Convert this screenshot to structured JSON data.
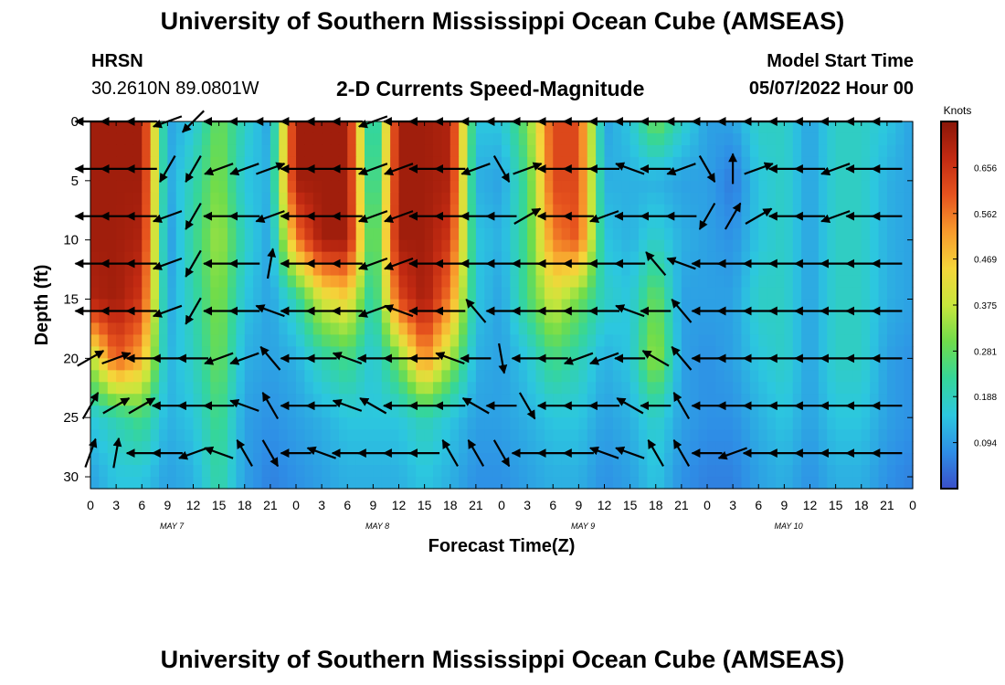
{
  "header": {
    "title": "University of Southern Mississippi Ocean Cube (AMSEAS)",
    "station": "HRSN",
    "coords": "30.2610N  89.0801W",
    "product": "2-D Currents Speed-Magnitude",
    "model_start_label": "Model Start Time",
    "model_start_value": "05/07/2022 Hour 00"
  },
  "footer": {
    "title": "University of Southern Mississippi Ocean Cube (AMSEAS)"
  },
  "colors": {
    "palette": [
      "#3a4fc8",
      "#2e8ee6",
      "#2cc7df",
      "#35d69a",
      "#6fdc4b",
      "#c8e63c",
      "#f5d53a",
      "#f89a2c",
      "#e6531e",
      "#c22a12",
      "#8a1608"
    ],
    "arrow": "#000000"
  },
  "chart_data": {
    "type": "heatmap",
    "title": "2-D Currents Speed-Magnitude",
    "xlabel": "Forecast Time(Z)",
    "ylabel": "Depth (ft)",
    "x_range": [
      0,
      96
    ],
    "x_units": "hours",
    "ylim": [
      31,
      0
    ],
    "x_tick_labels": [
      "0",
      "3",
      "6",
      "9",
      "12",
      "15",
      "18",
      "21",
      "0",
      "3",
      "6",
      "9",
      "12",
      "15",
      "18",
      "21",
      "0",
      "3",
      "6",
      "9",
      "12",
      "15",
      "18",
      "21",
      "0",
      "3",
      "6",
      "9",
      "12",
      "15",
      "18",
      "21",
      "0"
    ],
    "day_labels": [
      "MAY 7",
      "MAY 8",
      "MAY 9",
      "MAY 10"
    ],
    "y_ticks": [
      0,
      5,
      10,
      15,
      20,
      25,
      30
    ],
    "y_tick_labels": [
      "0",
      "5",
      "10",
      "15",
      "20",
      "25",
      "30"
    ],
    "colorbar": {
      "label": "Knots",
      "range": [
        0,
        0.75
      ],
      "ticks": [
        0.094,
        0.188,
        0.281,
        0.375,
        0.469,
        0.562,
        0.656
      ],
      "tick_labels": [
        "0.094",
        "0.188",
        "0.281",
        "0.375",
        "0.469",
        "0.562",
        "0.656"
      ]
    },
    "speed_field": {
      "x_hours": [
        0,
        3,
        6,
        9,
        12,
        15,
        18,
        21,
        24,
        27,
        30,
        33,
        36,
        39,
        42,
        45,
        48,
        51,
        54,
        57,
        60,
        63,
        66,
        69,
        72,
        75,
        78,
        81,
        84,
        87,
        90,
        93,
        96
      ],
      "depth_ft": [
        0,
        5,
        10,
        15,
        20,
        25,
        30
      ],
      "rows": [
        [
          0.72,
          0.72,
          0.72,
          0.1,
          0.15,
          0.3,
          0.18,
          0.1,
          0.72,
          0.72,
          0.72,
          0.12,
          0.72,
          0.72,
          0.7,
          0.15,
          0.15,
          0.3,
          0.62,
          0.62,
          0.1,
          0.15,
          0.3,
          0.18,
          0.1,
          0.1,
          0.18,
          0.18,
          0.1,
          0.18,
          0.18,
          0.15,
          0.1
        ],
        [
          0.72,
          0.72,
          0.72,
          0.1,
          0.2,
          0.32,
          0.15,
          0.12,
          0.72,
          0.72,
          0.72,
          0.15,
          0.72,
          0.72,
          0.7,
          0.12,
          0.1,
          0.25,
          0.62,
          0.62,
          0.12,
          0.12,
          0.12,
          0.1,
          0.1,
          0.05,
          0.15,
          0.18,
          0.1,
          0.18,
          0.18,
          0.12,
          0.1
        ],
        [
          0.72,
          0.72,
          0.7,
          0.08,
          0.22,
          0.35,
          0.18,
          0.1,
          0.55,
          0.72,
          0.72,
          0.2,
          0.72,
          0.72,
          0.65,
          0.15,
          0.12,
          0.25,
          0.55,
          0.6,
          0.15,
          0.12,
          0.18,
          0.12,
          0.1,
          0.08,
          0.15,
          0.18,
          0.1,
          0.18,
          0.18,
          0.12,
          0.1
        ],
        [
          0.7,
          0.72,
          0.65,
          0.1,
          0.2,
          0.32,
          0.15,
          0.1,
          0.2,
          0.4,
          0.45,
          0.18,
          0.62,
          0.72,
          0.55,
          0.15,
          0.1,
          0.25,
          0.4,
          0.3,
          0.18,
          0.15,
          0.3,
          0.1,
          0.1,
          0.1,
          0.18,
          0.18,
          0.1,
          0.18,
          0.18,
          0.12,
          0.1
        ],
        [
          0.35,
          0.6,
          0.5,
          0.12,
          0.18,
          0.3,
          0.12,
          0.1,
          0.12,
          0.2,
          0.25,
          0.15,
          0.3,
          0.55,
          0.35,
          0.12,
          0.1,
          0.15,
          0.25,
          0.2,
          0.12,
          0.15,
          0.35,
          0.1,
          0.08,
          0.1,
          0.15,
          0.18,
          0.1,
          0.18,
          0.18,
          0.1,
          0.08
        ],
        [
          0.15,
          0.2,
          0.25,
          0.12,
          0.15,
          0.25,
          0.1,
          0.08,
          0.1,
          0.12,
          0.15,
          0.15,
          0.15,
          0.2,
          0.15,
          0.1,
          0.1,
          0.12,
          0.15,
          0.15,
          0.1,
          0.12,
          0.18,
          0.1,
          0.08,
          0.08,
          0.12,
          0.15,
          0.1,
          0.15,
          0.15,
          0.1,
          0.08
        ],
        [
          0.1,
          0.15,
          0.15,
          0.1,
          0.12,
          0.22,
          0.1,
          0.06,
          0.08,
          0.1,
          0.12,
          0.12,
          0.12,
          0.15,
          0.12,
          0.08,
          0.08,
          0.1,
          0.12,
          0.12,
          0.08,
          0.1,
          0.15,
          0.08,
          0.06,
          0.06,
          0.1,
          0.12,
          0.08,
          0.12,
          0.12,
          0.08,
          0.06
        ]
      ]
    },
    "vectors": {
      "depths_ft": [
        0,
        4,
        8,
        12,
        16,
        20,
        24,
        28
      ],
      "x_hours": [
        0,
        3,
        6,
        9,
        12,
        15,
        18,
        21,
        24,
        27,
        30,
        33,
        36,
        39,
        42,
        45,
        48,
        51,
        54,
        57,
        60,
        63,
        66,
        69,
        72,
        75,
        78,
        81,
        84,
        87,
        90,
        93
      ],
      "rows": [
        [
          180,
          180,
          180,
          200,
          225,
          180,
          180,
          180,
          180,
          180,
          180,
          200,
          180,
          180,
          180,
          180,
          180,
          180,
          180,
          180,
          180,
          180,
          180,
          180,
          180,
          180,
          180,
          180,
          180,
          180,
          180,
          180
        ],
        [
          180,
          180,
          180,
          240,
          240,
          200,
          200,
          20,
          180,
          180,
          180,
          200,
          200,
          180,
          180,
          200,
          300,
          20,
          180,
          180,
          180,
          160,
          180,
          200,
          300,
          90,
          20,
          180,
          180,
          200,
          180,
          180
        ],
        [
          180,
          180,
          180,
          200,
          240,
          180,
          180,
          200,
          180,
          180,
          180,
          200,
          200,
          180,
          180,
          180,
          180,
          30,
          180,
          180,
          200,
          180,
          180,
          180,
          240,
          60,
          30,
          180,
          180,
          200,
          180,
          180
        ],
        [
          180,
          180,
          180,
          200,
          240,
          180,
          180,
          80,
          180,
          180,
          180,
          200,
          200,
          180,
          180,
          180,
          180,
          180,
          180,
          180,
          180,
          180,
          130,
          160,
          180,
          180,
          180,
          180,
          180,
          180,
          180,
          180
        ],
        [
          180,
          180,
          180,
          200,
          240,
          180,
          180,
          160,
          180,
          180,
          180,
          200,
          160,
          180,
          180,
          130,
          180,
          180,
          180,
          180,
          180,
          160,
          180,
          130,
          180,
          180,
          180,
          180,
          180,
          180,
          180,
          180
        ],
        [
          30,
          20,
          180,
          180,
          180,
          200,
          200,
          130,
          180,
          180,
          160,
          180,
          180,
          180,
          160,
          180,
          280,
          180,
          180,
          200,
          200,
          180,
          150,
          130,
          180,
          180,
          180,
          180,
          180,
          180,
          180,
          180
        ],
        [
          60,
          30,
          30,
          180,
          180,
          180,
          160,
          120,
          180,
          180,
          160,
          150,
          180,
          180,
          180,
          150,
          180,
          300,
          180,
          180,
          180,
          150,
          180,
          120,
          180,
          180,
          180,
          180,
          180,
          180,
          180,
          180
        ],
        [
          70,
          80,
          180,
          180,
          200,
          160,
          120,
          300,
          180,
          160,
          180,
          180,
          180,
          180,
          120,
          120,
          300,
          180,
          180,
          180,
          160,
          160,
          120,
          120,
          180,
          200,
          180,
          180,
          180,
          180,
          180,
          180
        ]
      ]
    }
  }
}
